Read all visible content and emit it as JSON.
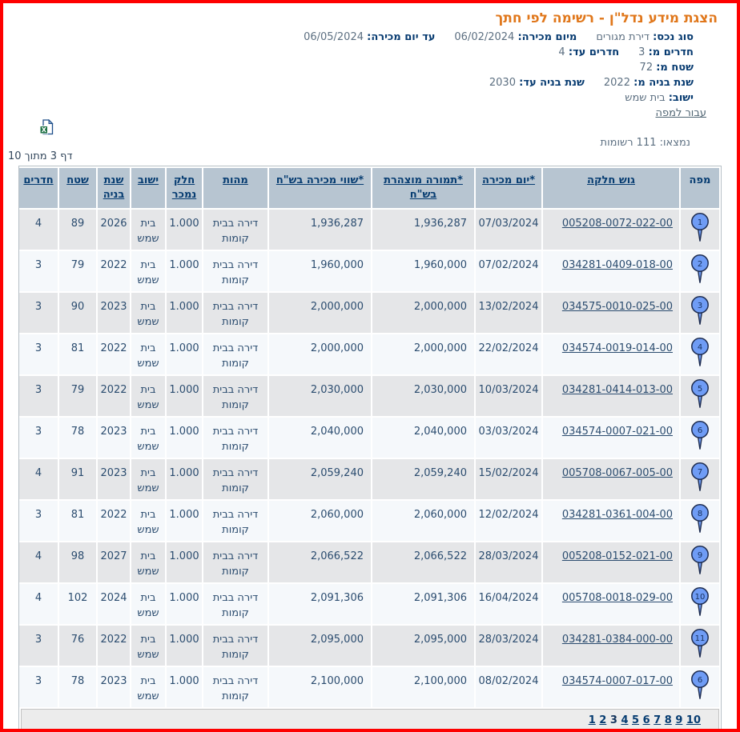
{
  "page": {
    "title": "הצגת מידע נדל\"ן - רשימה לפי חתך"
  },
  "filters": {
    "lines": [
      [
        {
          "label": "סוג נכס:",
          "value": "דירת מגורים"
        },
        {
          "label": "מיום מכירה:",
          "value": "06/02/2024"
        },
        {
          "label": "עד יום מכירה:",
          "value": "06/05/2024"
        }
      ],
      [
        {
          "label": "חדרים מ:",
          "value": "3"
        },
        {
          "label": "חדרים עד:",
          "value": "4"
        }
      ],
      [
        {
          "label": "שטח מ:",
          "value": "72"
        }
      ],
      [
        {
          "label": "שנת בניה מ:",
          "value": "2022"
        },
        {
          "label": "שנת בניה עד:",
          "value": "2030"
        }
      ],
      [
        {
          "label": "ישוב:",
          "value": "בית שמש"
        }
      ]
    ],
    "map_link_label": "עבור למפה"
  },
  "toolbar": {
    "excel_icon": "excel-export-icon"
  },
  "results": {
    "found_text": "נמצאו: 111 רשומות",
    "page_text": "דף 3 מתוך 10"
  },
  "table": {
    "headers": [
      {
        "key": "map",
        "label": "מפה",
        "sortable": false
      },
      {
        "key": "parcel",
        "label": "גוש חלקה",
        "sortable": true
      },
      {
        "key": "sale_date",
        "label": "*יום מכירה",
        "sortable": true
      },
      {
        "key": "declared",
        "label": "*תמורה מוצהרת בש\"ח",
        "sortable": true
      },
      {
        "key": "value",
        "label": "*שווי מכירה בש\"ח",
        "sortable": true
      },
      {
        "key": "nature",
        "label": "מהות",
        "sortable": true
      },
      {
        "key": "part",
        "label": "חלק נמכר",
        "sortable": true
      },
      {
        "key": "city",
        "label": "ישוב",
        "sortable": true
      },
      {
        "key": "year",
        "label": "שנת בניה",
        "sortable": true
      },
      {
        "key": "area",
        "label": "שטח",
        "sortable": true
      },
      {
        "key": "rooms",
        "label": "חדרים",
        "sortable": true
      }
    ],
    "rows": [
      {
        "map_pin": "1",
        "parcel": "005208-0072-022-00",
        "sale_date": "07/03/2024",
        "declared": "1,936,287",
        "value": "1,936,287",
        "nature": "דירה בבית קומות",
        "part": "1.000",
        "city": "בית שמש",
        "year": "2026",
        "area": "89",
        "rooms": "4"
      },
      {
        "map_pin": "2",
        "parcel": "034281-0409-018-00",
        "sale_date": "07/02/2024",
        "declared": "1,960,000",
        "value": "1,960,000",
        "nature": "דירה בבית קומות",
        "part": "1.000",
        "city": "בית שמש",
        "year": "2022",
        "area": "79",
        "rooms": "3"
      },
      {
        "map_pin": "3",
        "parcel": "034575-0010-025-00",
        "sale_date": "13/02/2024",
        "declared": "2,000,000",
        "value": "2,000,000",
        "nature": "דירה בבית קומות",
        "part": "1.000",
        "city": "בית שמש",
        "year": "2023",
        "area": "90",
        "rooms": "3"
      },
      {
        "map_pin": "4",
        "parcel": "034574-0019-014-00",
        "sale_date": "22/02/2024",
        "declared": "2,000,000",
        "value": "2,000,000",
        "nature": "דירה בבית קומות",
        "part": "1.000",
        "city": "בית שמש",
        "year": "2022",
        "area": "81",
        "rooms": "3"
      },
      {
        "map_pin": "5",
        "parcel": "034281-0414-013-00",
        "sale_date": "10/03/2024",
        "declared": "2,030,000",
        "value": "2,030,000",
        "nature": "דירה בבית קומות",
        "part": "1.000",
        "city": "בית שמש",
        "year": "2022",
        "area": "79",
        "rooms": "3"
      },
      {
        "map_pin": "6",
        "parcel": "034574-0007-021-00",
        "sale_date": "03/03/2024",
        "declared": "2,040,000",
        "value": "2,040,000",
        "nature": "דירה בבית קומות",
        "part": "1.000",
        "city": "בית שמש",
        "year": "2023",
        "area": "78",
        "rooms": "3"
      },
      {
        "map_pin": "7",
        "parcel": "005708-0067-005-00",
        "sale_date": "15/02/2024",
        "declared": "2,059,240",
        "value": "2,059,240",
        "nature": "דירה בבית קומות",
        "part": "1.000",
        "city": "בית שמש",
        "year": "2023",
        "area": "91",
        "rooms": "4"
      },
      {
        "map_pin": "8",
        "parcel": "034281-0361-004-00",
        "sale_date": "12/02/2024",
        "declared": "2,060,000",
        "value": "2,060,000",
        "nature": "דירה בבית קומות",
        "part": "1.000",
        "city": "בית שמש",
        "year": "2022",
        "area": "81",
        "rooms": "3"
      },
      {
        "map_pin": "9",
        "parcel": "005208-0152-021-00",
        "sale_date": "28/03/2024",
        "declared": "2,066,522",
        "value": "2,066,522",
        "nature": "דירה בבית קומות",
        "part": "1.000",
        "city": "בית שמש",
        "year": "2027",
        "area": "98",
        "rooms": "4"
      },
      {
        "map_pin": "10",
        "parcel": "005708-0018-029-00",
        "sale_date": "16/04/2024",
        "declared": "2,091,306",
        "value": "2,091,306",
        "nature": "דירה בבית קומות",
        "part": "1.000",
        "city": "בית שמש",
        "year": "2024",
        "area": "102",
        "rooms": "4"
      },
      {
        "map_pin": "11",
        "parcel": "034281-0384-000-00",
        "sale_date": "28/03/2024",
        "declared": "2,095,000",
        "value": "2,095,000",
        "nature": "דירה בבית קומות",
        "part": "1.000",
        "city": "בית שמש",
        "year": "2022",
        "area": "76",
        "rooms": "3"
      },
      {
        "map_pin": "6",
        "parcel": "034574-0007-017-00",
        "sale_date": "08/02/2024",
        "declared": "2,100,000",
        "value": "2,100,000",
        "nature": "דירה בבית קומות",
        "part": "1.000",
        "city": "בית שמש",
        "year": "2023",
        "area": "78",
        "rooms": "3"
      }
    ]
  },
  "pagination": {
    "pages": [
      "1",
      "2",
      "3",
      "4",
      "5",
      "6",
      "7",
      "8",
      "9",
      "10"
    ],
    "current": "3"
  },
  "colors": {
    "page_border": "#fe0000",
    "title": "#e0771b",
    "label": "#063a70",
    "value_text": "#5c6f81",
    "header_bg": "#b7c5d1",
    "header_link": "#063c71",
    "row_odd_bg": "#e5e6e8",
    "row_even_bg": "#f5f8fb",
    "cell_text": "#2b4c6f",
    "pin_fill": "#6f9cf5",
    "pin_stroke": "#1d2c50",
    "pagination_bg": "#ececec",
    "excel_green": "#1e7145"
  }
}
